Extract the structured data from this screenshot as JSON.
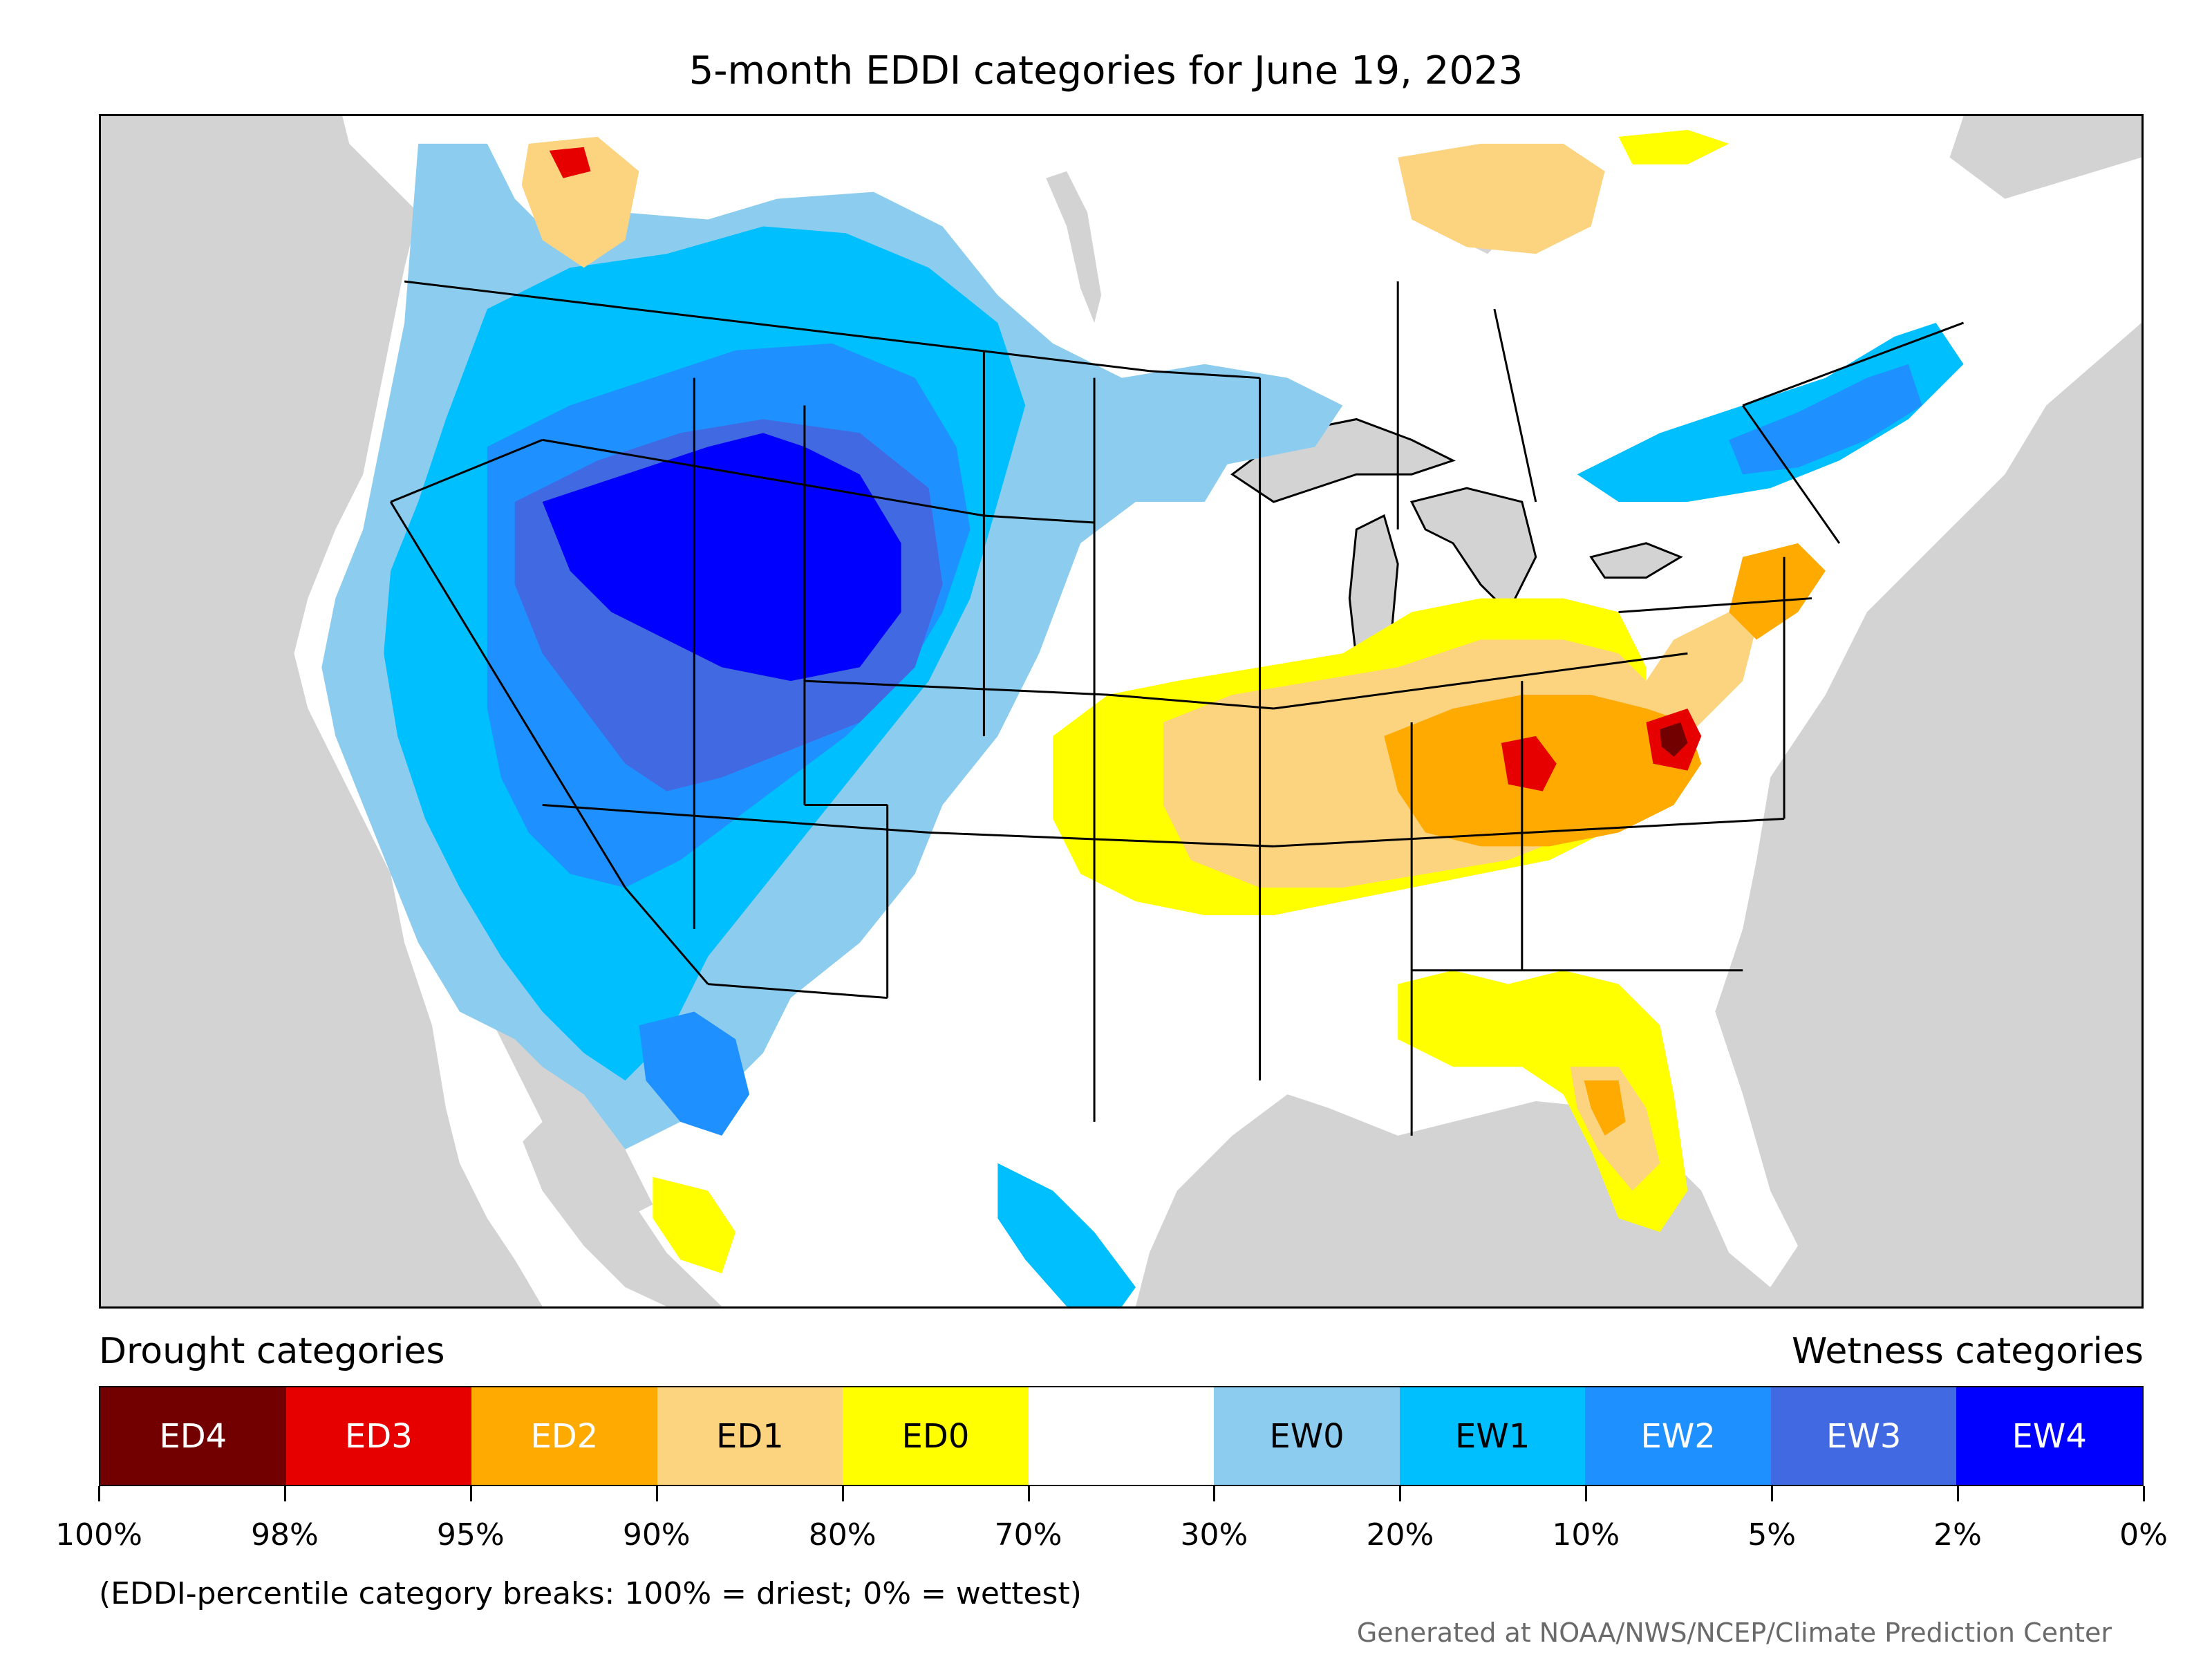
{
  "title": "5-month EDDI categories for June 19, 2023",
  "legend": {
    "drought_label": "Drought categories",
    "wetness_label": "Wetness categories",
    "categories": [
      {
        "label": "ED4",
        "color": "#730000",
        "text_color": "#ffffff"
      },
      {
        "label": "ED3",
        "color": "#e60000",
        "text_color": "#ffffff"
      },
      {
        "label": "ED2",
        "color": "#ffaa00",
        "text_color": "#ffffff"
      },
      {
        "label": "ED1",
        "color": "#fcd37f",
        "text_color": "#000000"
      },
      {
        "label": "ED0",
        "color": "#ffff00",
        "text_color": "#000000"
      },
      {
        "label": "",
        "color": "#ffffff",
        "text_color": "#000000"
      },
      {
        "label": "EW0",
        "color": "#8ccdef",
        "text_color": "#000000"
      },
      {
        "label": "EW1",
        "color": "#00bfff",
        "text_color": "#000000"
      },
      {
        "label": "EW2",
        "color": "#1e90ff",
        "text_color": "#ffffff"
      },
      {
        "label": "EW3",
        "color": "#4169e1",
        "text_color": "#ffffff"
      },
      {
        "label": "EW4",
        "color": "#0000ff",
        "text_color": "#ffffff"
      }
    ],
    "tick_labels": [
      "100%",
      "98%",
      "95%",
      "90%",
      "80%",
      "70%",
      "30%",
      "20%",
      "10%",
      "5%",
      "2%",
      "0%"
    ]
  },
  "footnote": "(EDDI-percentile category breaks: 100% = driest; 0% = wettest)",
  "credit": "Generated at NOAA/NWS/NCEP/Climate Prediction Center",
  "map_colors": {
    "ocean": "#d3d3d3",
    "land": "#ffffff",
    "lakes": "#d3d3d3",
    "borders": "#000000"
  }
}
